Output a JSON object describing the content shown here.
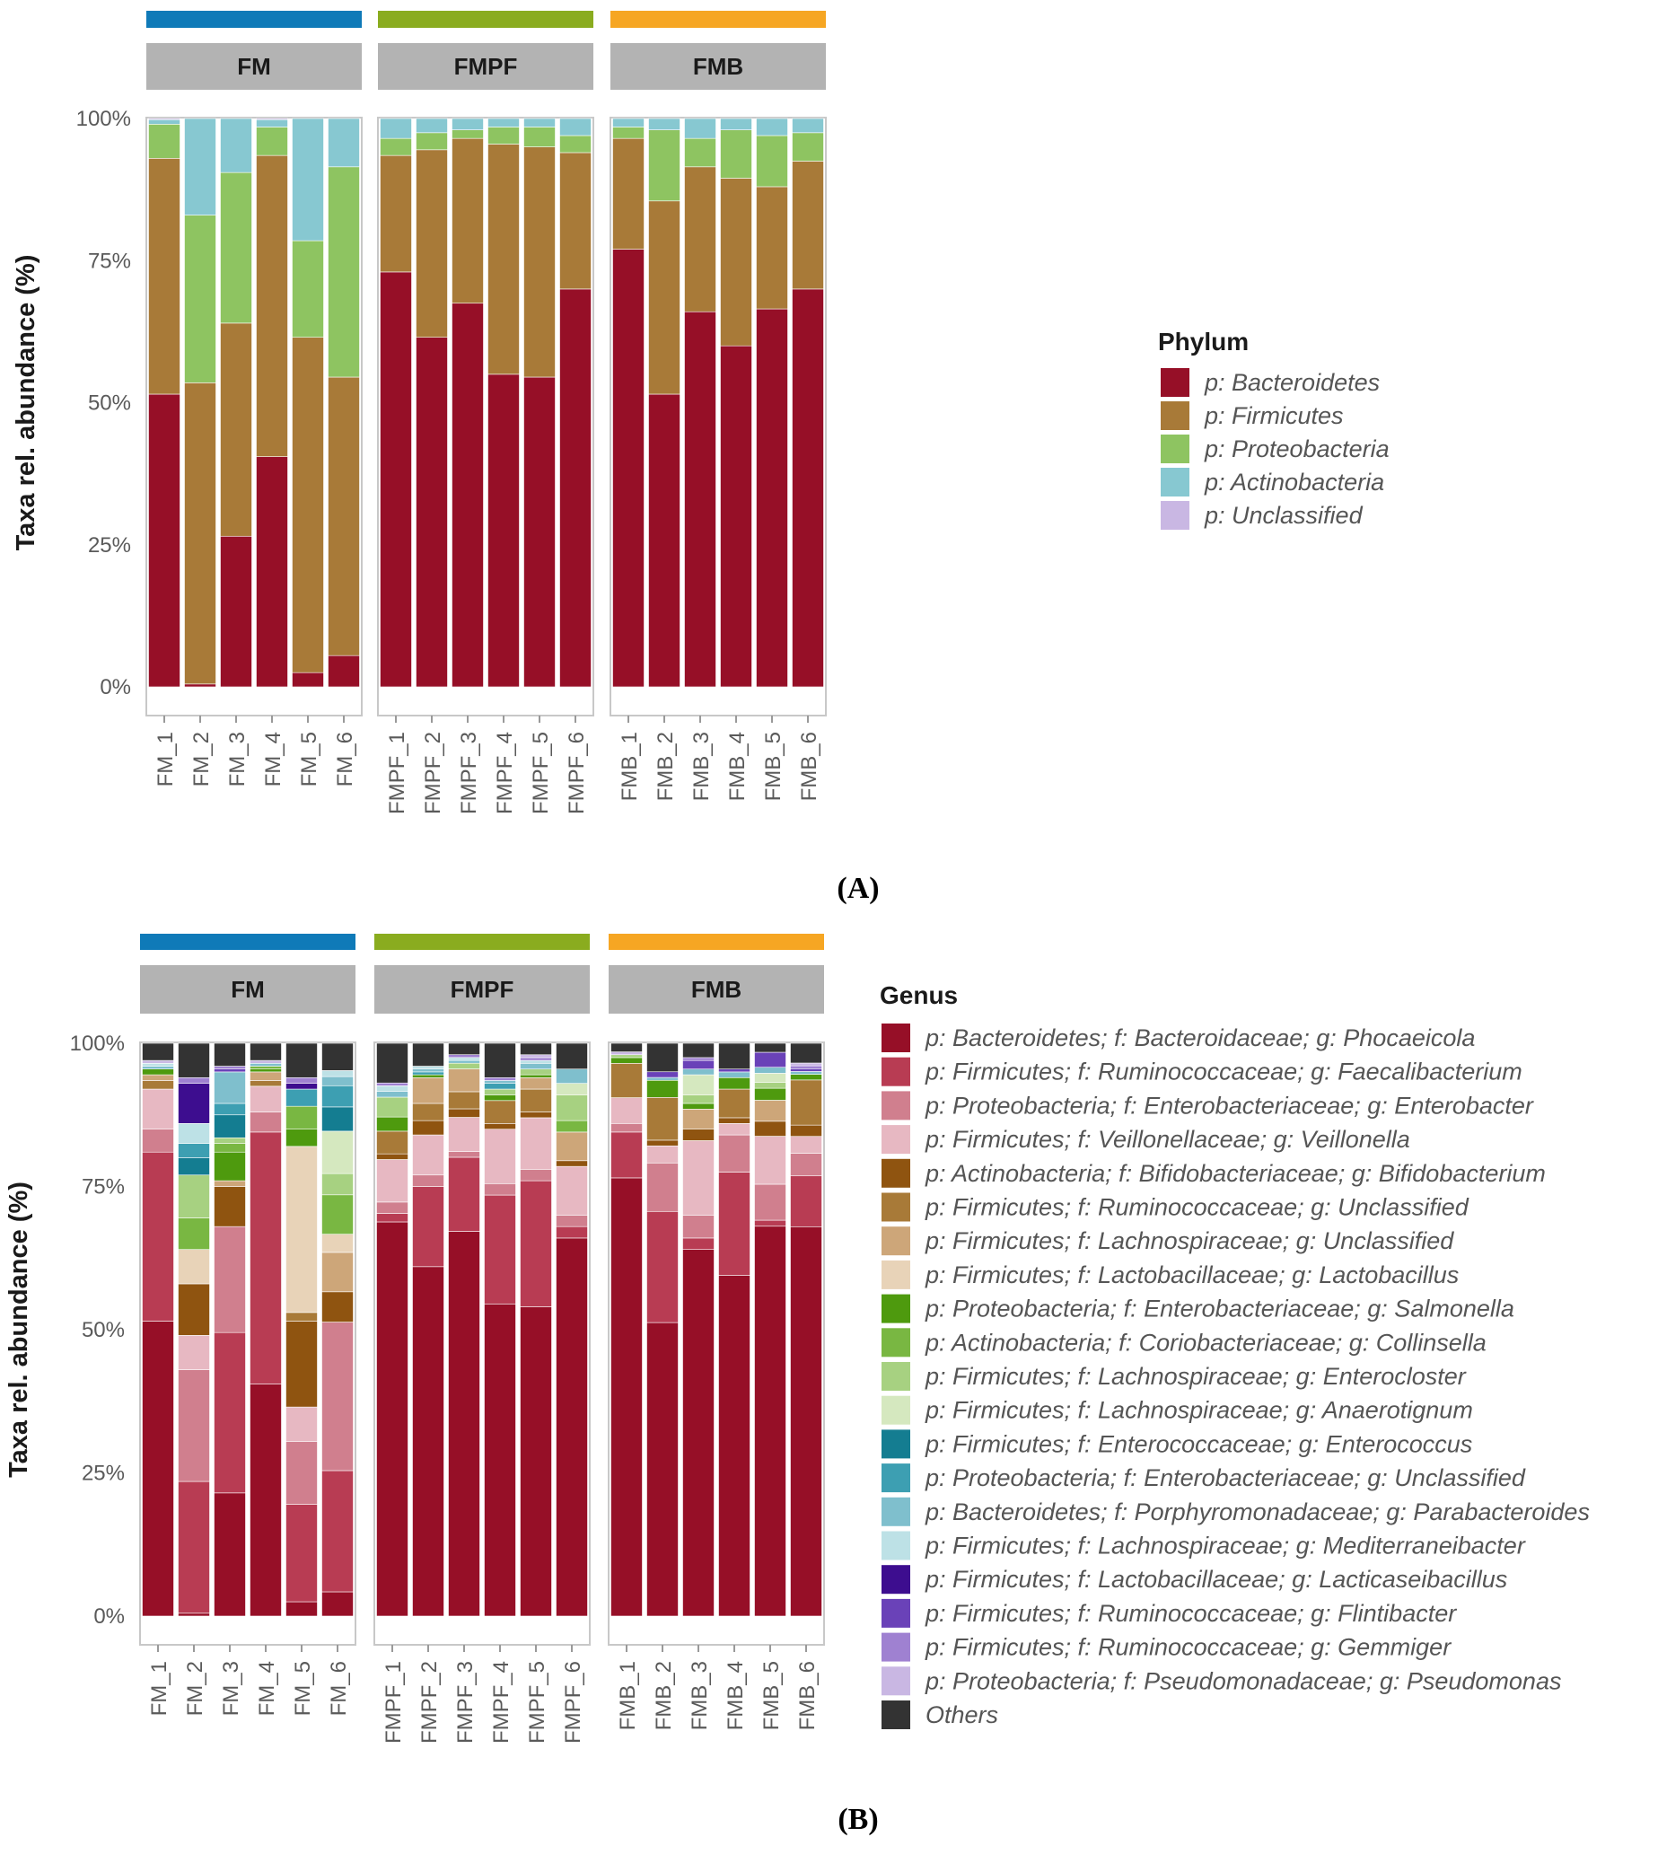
{
  "chart_data": [
    {
      "type": "bar",
      "stacked": true,
      "panel_label": "A",
      "ylabel": "Taxa rel. abundance (%)",
      "ylim": [
        0,
        100
      ],
      "yticks": [
        "0%",
        "25%",
        "50%",
        "75%",
        "100%"
      ],
      "legend_title": "Phylum",
      "legend_position": "right",
      "facets": [
        {
          "name": "FM",
          "color": "#0f7ab8",
          "categories": [
            "FM_1",
            "FM_2",
            "FM_3",
            "FM_4",
            "FM_5",
            "FM_6"
          ]
        },
        {
          "name": "FMPF",
          "color": "#8aac1f",
          "categories": [
            "FMPF_1",
            "FMPF_2",
            "FMPF_3",
            "FMPF_4",
            "FMPF_5",
            "FMPF_6"
          ]
        },
        {
          "name": "FMB",
          "color": "#f6a623",
          "categories": [
            "FMB_1",
            "FMB_2",
            "FMB_3",
            "FMB_4",
            "FMB_5",
            "FMB_6"
          ]
        }
      ],
      "series": [
        {
          "name": "p: Bacteroidetes",
          "color": "#960f27",
          "values": [
            51.5,
            0.5,
            26.5,
            40.5,
            2.5,
            5.5,
            73,
            61.5,
            67.5,
            55,
            54.5,
            70,
            77,
            51.5,
            66,
            60,
            66.5,
            70
          ]
        },
        {
          "name": "p: Firmicutes",
          "color": "#a87a38",
          "values": [
            41.5,
            53,
            37.5,
            53,
            59,
            49,
            20.5,
            33,
            29,
            40.5,
            40.5,
            24,
            19.5,
            34,
            25.5,
            29.5,
            21.5,
            22.5
          ]
        },
        {
          "name": "p: Proteobacteria",
          "color": "#8ec461",
          "values": [
            6,
            29.5,
            26.5,
            5,
            17,
            37,
            3,
            3,
            1.5,
            3,
            3.5,
            3,
            2,
            12.5,
            5,
            8.5,
            9,
            5
          ]
        },
        {
          "name": "p: Actinobacteria",
          "color": "#87c8d1",
          "values": [
            0.8,
            17,
            9.5,
            1.3,
            21.5,
            8.5,
            3.5,
            2.5,
            2,
            1.5,
            1.5,
            3,
            1.5,
            2,
            3.5,
            2,
            3,
            2.5
          ]
        },
        {
          "name": "p: Unclassified",
          "color": "#c9b7e3",
          "values": [
            0.2,
            0,
            0,
            0.2,
            0,
            0,
            0,
            0,
            0,
            0,
            0,
            0,
            0,
            0,
            0,
            0,
            0,
            0
          ]
        }
      ]
    },
    {
      "type": "bar",
      "stacked": true,
      "panel_label": "B",
      "ylabel": "Taxa rel. abundance (%)",
      "ylim": [
        0,
        100
      ],
      "yticks": [
        "0%",
        "25%",
        "50%",
        "75%",
        "100%"
      ],
      "legend_title": "Genus",
      "legend_position": "right",
      "facets": [
        {
          "name": "FM",
          "color": "#0f7ab8",
          "categories": [
            "FM_1",
            "FM_2",
            "FM_3",
            "FM_4",
            "FM_5",
            "FM_6"
          ]
        },
        {
          "name": "FMPF",
          "color": "#8aac1f",
          "categories": [
            "FMPF_1",
            "FMPF_2",
            "FMPF_3",
            "FMPF_4",
            "FMPF_5",
            "FMPF_6"
          ]
        },
        {
          "name": "FMB",
          "color": "#f6a623",
          "categories": [
            "FMB_1",
            "FMB_2",
            "FMB_3",
            "FMB_4",
            "FMB_5",
            "FMB_6"
          ]
        }
      ],
      "series": [
        {
          "name": "p: Bacteroidetes; f: Bacteroidaceae; g: Phocaeicola",
          "color": "#960f27",
          "values": [
            51.5,
            0.5,
            21.5,
            40.5,
            2.5,
            4,
            69.5,
            61,
            67.5,
            54.5,
            54,
            66,
            76.5,
            51.5,
            64,
            59.5,
            65,
            69
          ]
        },
        {
          "name": "p: Firmicutes; f: Ruminococcaceae; g: Faecalibacterium",
          "color": "#b83c53",
          "values": [
            29.5,
            23,
            28,
            44,
            17,
            20,
            1.5,
            14,
            13,
            19,
            22,
            2,
            8,
            19.5,
            2,
            18,
            1,
            9
          ]
        },
        {
          "name": "p: Proteobacteria; f: Enterobacteriaceae; g: Enterobacter",
          "color": "#d07f8e",
          "values": [
            4,
            19.5,
            18.5,
            3.5,
            11,
            24.5,
            2,
            2,
            1,
            2,
            2,
            2,
            1.5,
            8.5,
            4,
            6.5,
            6,
            4
          ]
        },
        {
          "name": "p: Firmicutes; f: Veillonellaceae; g: Veillonella",
          "color": "#e7b8c2",
          "values": [
            7,
            6,
            0,
            4.5,
            6,
            0,
            7.5,
            7,
            6,
            9.5,
            9,
            8.5,
            4.5,
            3,
            13,
            2,
            8,
            3
          ]
        },
        {
          "name": "p: Actinobacteria; f: Bifidobacteriaceae; g: Bifidobacterium",
          "color": "#8f5410",
          "values": [
            0,
            9,
            7,
            0,
            15,
            5,
            1,
            2.5,
            1.5,
            1,
            1,
            1,
            0,
            1,
            2,
            1,
            2.5,
            2
          ]
        },
        {
          "name": "p: Firmicutes; f: Ruminococcaceae; g: Unclassified",
          "color": "#a87a38",
          "values": [
            1.5,
            0,
            0,
            1,
            1.5,
            0,
            4,
            3,
            3,
            4,
            4,
            0,
            6,
            7.5,
            0,
            5,
            0,
            8
          ]
        },
        {
          "name": "p: Firmicutes; f: Lachnospiraceae; g: Unclassified",
          "color": "#cda679",
          "values": [
            1,
            0,
            1,
            1.5,
            0,
            6.5,
            0,
            4.5,
            4,
            0,
            2,
            5,
            0,
            0,
            3.5,
            0,
            3.5,
            0
          ]
        },
        {
          "name": "p: Firmicutes; f: Lactobacillaceae; g: Lactobacillus",
          "color": "#e8d3b8",
          "values": [
            0,
            6,
            0,
            0,
            29,
            3,
            0,
            0,
            0,
            0,
            0,
            0,
            0,
            0,
            0,
            0,
            0,
            0
          ]
        },
        {
          "name": "p: Proteobacteria; f: Enterobacteriaceae; g: Salmonella",
          "color": "#4e9a0e",
          "values": [
            1,
            0,
            5,
            0.5,
            3,
            0,
            2.5,
            0.5,
            0,
            1,
            0.5,
            0,
            1,
            3,
            1,
            2,
            2,
            1
          ]
        },
        {
          "name": "p: Actinobacteria; f: Coriobacteriaceae; g: Collinsella",
          "color": "#79b742",
          "values": [
            0,
            5.5,
            1.5,
            0.5,
            4,
            6.5,
            0,
            0,
            0,
            0,
            0,
            2,
            0,
            0,
            0,
            0,
            0,
            0
          ]
        },
        {
          "name": "p: Firmicutes; f: Lachnospiraceae; g: Enterocloster",
          "color": "#a7d181",
          "values": [
            0,
            7.5,
            1,
            0,
            0,
            3.5,
            3.5,
            0,
            1,
            1,
            1,
            4.5,
            0.5,
            0,
            1.5,
            0,
            1,
            0
          ]
        },
        {
          "name": "p: Firmicutes; f: Lachnospiraceae; g: Anaerotignum",
          "color": "#d5e8bf",
          "values": [
            0,
            0,
            0,
            0,
            0,
            7,
            0,
            0,
            0,
            0,
            0,
            2,
            0,
            0,
            3.5,
            0,
            1.5,
            0
          ]
        },
        {
          "name": "p: Firmicutes; f: Enterococcaceae; g: Enterococcus",
          "color": "#147d91",
          "values": [
            0,
            3,
            4,
            0,
            0,
            4,
            0,
            0,
            0,
            0,
            0,
            0,
            0,
            0,
            0,
            0,
            0,
            0
          ]
        },
        {
          "name": "p: Proteobacteria; f: Enterobacteriaceae; g: Unclassified",
          "color": "#3d9fb2",
          "values": [
            0,
            2.5,
            2,
            0,
            3,
            3.5,
            0,
            0.5,
            0,
            1,
            0,
            0,
            0,
            0,
            0,
            0,
            0,
            0
          ]
        },
        {
          "name": "p: Bacteroidetes; f: Porphyromonadaceae; g: Parabacteroides",
          "color": "#7fbfcd",
          "values": [
            0.5,
            0,
            5.5,
            0.5,
            0,
            1.5,
            1,
            0.5,
            0.5,
            0.5,
            1,
            2.5,
            0,
            0.5,
            1,
            1,
            1,
            0.5
          ]
        },
        {
          "name": "p: Firmicutes; f: Lachnospiraceae; g: Mediterraneibacter",
          "color": "#bde1e6",
          "values": [
            0.5,
            3.5,
            0,
            0,
            0,
            1,
            1,
            0.5,
            0.5,
            0,
            0.5,
            0,
            0,
            0,
            0,
            0,
            0,
            0
          ]
        },
        {
          "name": "p: Firmicutes; f: Lactobacillaceae; g: Lacticaseibacillus",
          "color": "#3d0d8f",
          "values": [
            0,
            7,
            0,
            0,
            1,
            0,
            0,
            0,
            0,
            0,
            0,
            0,
            0,
            0,
            0,
            0,
            0,
            0
          ]
        },
        {
          "name": "p: Firmicutes; f: Ruminococcaceae; g: Flintibacter",
          "color": "#6a42b8",
          "values": [
            0,
            0,
            0.5,
            0,
            0,
            0,
            0,
            0,
            0,
            0,
            0,
            0,
            0,
            1,
            1.5,
            0.5,
            2.5,
            0.5
          ]
        },
        {
          "name": "p: Firmicutes; f: Ruminococcaceae; g: Gemmiger",
          "color": "#9f81d1",
          "values": [
            0,
            1,
            0.5,
            0,
            1,
            0,
            0.5,
            0,
            0.5,
            0.5,
            0.5,
            0,
            0,
            0,
            0.5,
            0,
            0,
            0.5
          ]
        },
        {
          "name": "p: Proteobacteria; f: Pseudomonadaceae; g: Pseudomonas",
          "color": "#c9b7e3",
          "values": [
            0.5,
            0,
            0,
            0.5,
            0,
            0,
            0,
            0,
            0,
            0,
            0.5,
            0,
            0.5,
            0,
            0,
            0,
            0,
            0.5
          ]
        },
        {
          "name": "Others",
          "color": "#333333",
          "values": [
            3,
            6,
            4,
            3,
            6,
            4.5,
            7,
            4,
            2,
            6,
            2,
            4.5,
            1.5,
            5,
            2.5,
            4.5,
            1.5,
            3.5
          ]
        }
      ]
    }
  ]
}
